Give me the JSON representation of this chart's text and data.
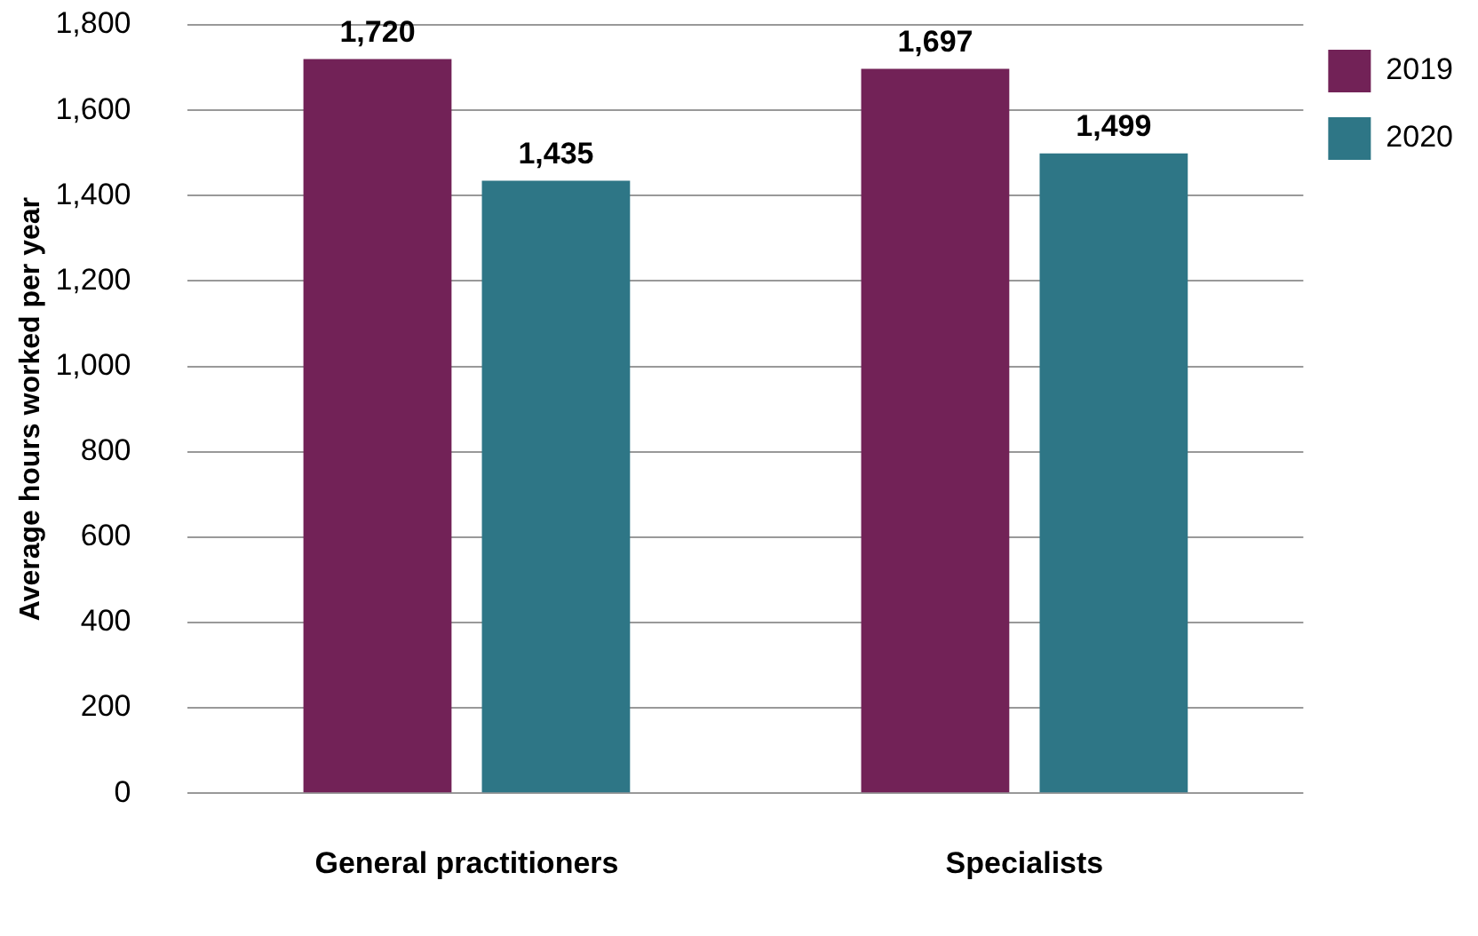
{
  "chart_data": {
    "type": "bar",
    "ylabel": "Average hours worked per year",
    "categories": [
      "General practitioners",
      "Specialists"
    ],
    "series": [
      {
        "name": "2019",
        "color": "#722257",
        "values": [
          1720,
          1697
        ],
        "value_labels": [
          "1,720",
          "1,697"
        ]
      },
      {
        "name": "2020",
        "color": "#2e7686",
        "values": [
          1435,
          1499
        ],
        "value_labels": [
          "1,435",
          "1,499"
        ]
      }
    ],
    "ylim": [
      0,
      1800
    ],
    "yticks": [
      {
        "value": 0,
        "label": "0"
      },
      {
        "value": 200,
        "label": "200"
      },
      {
        "value": 400,
        "label": "400"
      },
      {
        "value": 600,
        "label": "600"
      },
      {
        "value": 800,
        "label": "800"
      },
      {
        "value": 1000,
        "label": "1,000"
      },
      {
        "value": 1200,
        "label": "1,200"
      },
      {
        "value": 1400,
        "label": "1,400"
      },
      {
        "value": 1600,
        "label": "1,600"
      },
      {
        "value": 1800,
        "label": "1,800"
      }
    ],
    "grid": "y",
    "legend": "top right"
  }
}
